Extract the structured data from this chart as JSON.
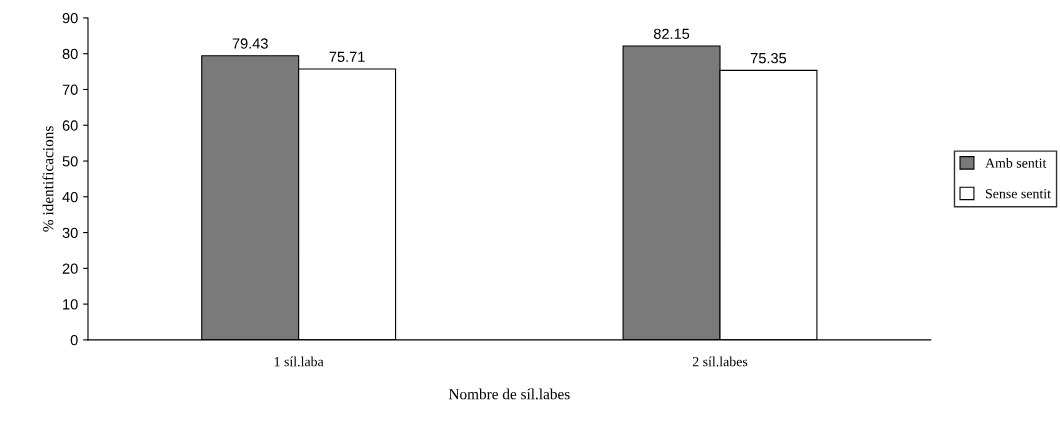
{
  "chart_data": {
    "type": "bar",
    "xlabel": "Nombre de síl.labes",
    "ylabel": "% identificacions",
    "categories": [
      "1 síl.laba",
      "2 síl.labes"
    ],
    "series": [
      {
        "name": "Amb sentit",
        "color": "#7a7a7a",
        "values": [
          79.43,
          82.15
        ]
      },
      {
        "name": "Sense sentit",
        "color": "#ffffff",
        "values": [
          75.71,
          75.35
        ]
      }
    ],
    "ylim": [
      0,
      90
    ],
    "yticks": [
      0,
      10,
      20,
      30,
      40,
      50,
      60,
      70,
      80,
      90
    ],
    "data_labels": true,
    "legend": "right",
    "grid": false
  }
}
